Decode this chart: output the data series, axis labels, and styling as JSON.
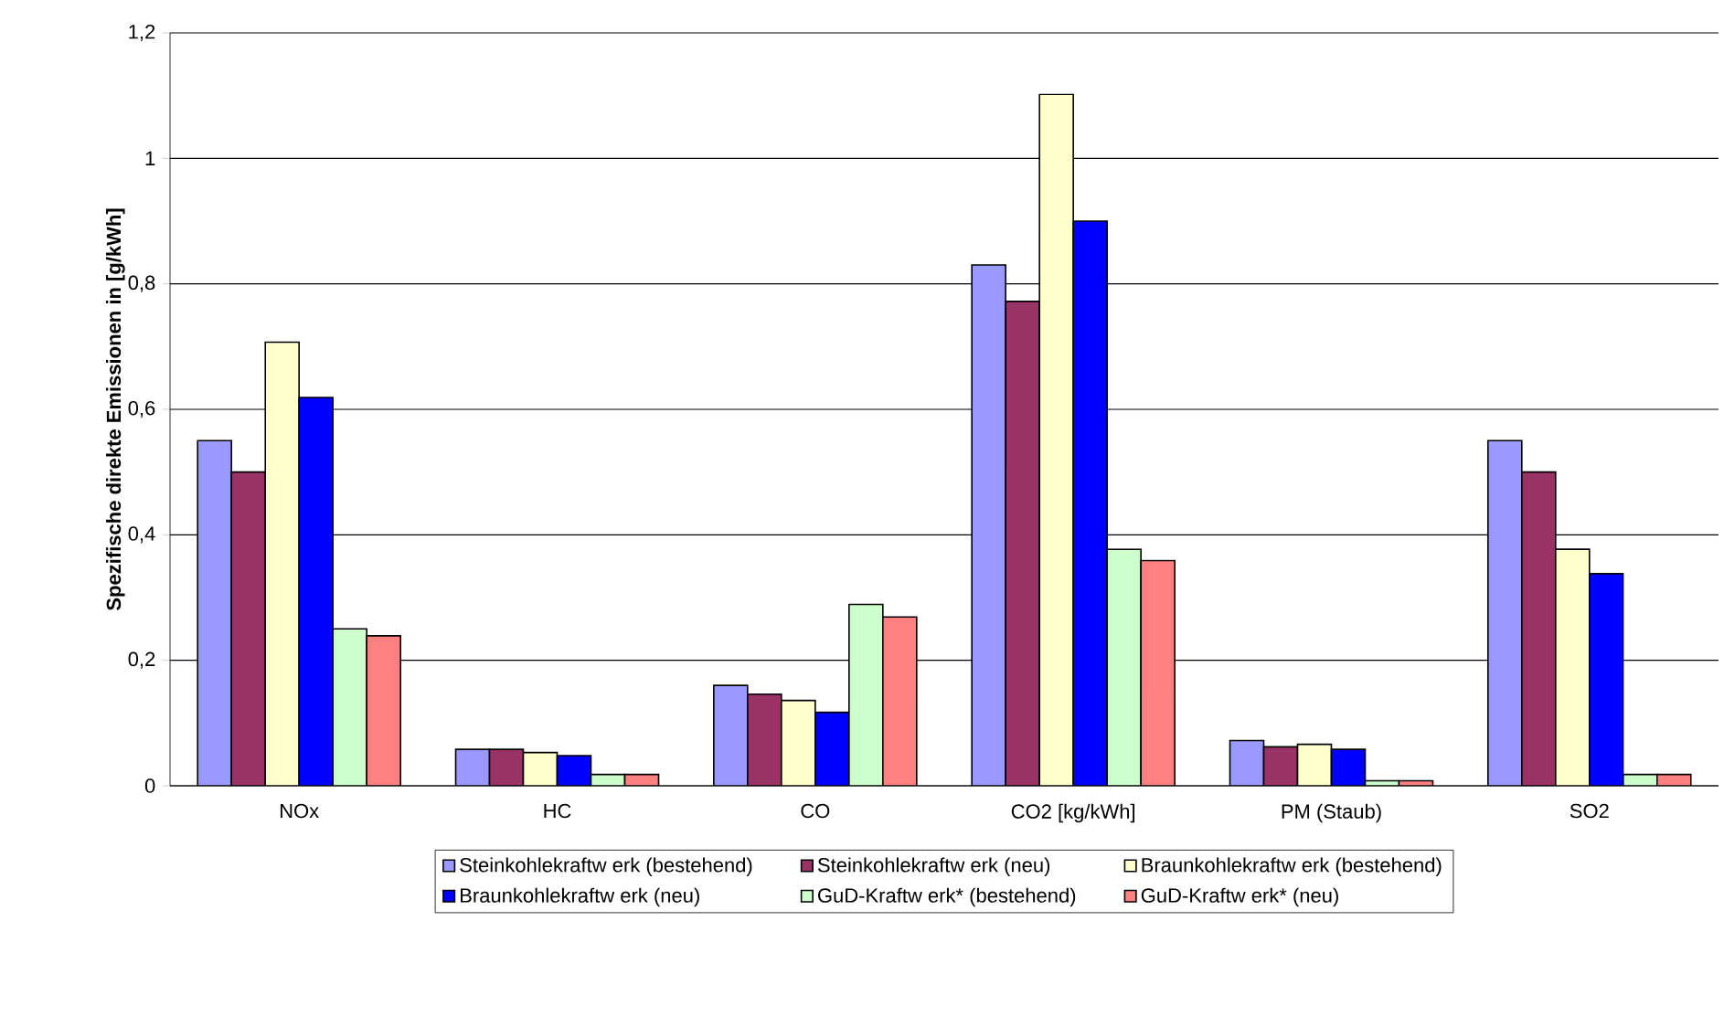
{
  "chart_data": {
    "type": "bar",
    "ylabel": "Spezifische direkte Emissionen in [g/kWh]",
    "categories": [
      "NOx",
      "HC",
      "CO",
      "CO2 [kg/kWh]",
      "PM (Staub)",
      "SO2"
    ],
    "series": [
      {
        "name": "Steinkohlekraftw erk (bestehend)",
        "color": "#9999ff",
        "values": [
          0.55,
          0.058,
          0.16,
          0.83,
          0.072,
          0.55
        ]
      },
      {
        "name": "Steinkohlekraftw erk (neu)",
        "color": "#993366",
        "values": [
          0.5,
          0.058,
          0.146,
          0.772,
          0.062,
          0.5
        ]
      },
      {
        "name": "Braunkohlekraftw erk (bestehend)",
        "color": "#ffffcc",
        "values": [
          0.707,
          0.053,
          0.136,
          1.102,
          0.066,
          0.377
        ]
      },
      {
        "name": "Braunkohlekraftw erk (neu)",
        "color": "#0000ff",
        "values": [
          0.619,
          0.048,
          0.117,
          0.9,
          0.058,
          0.338
        ]
      },
      {
        "name": "GuD-Kraftw erk* (bestehend)",
        "color": "#ccffcc",
        "values": [
          0.25,
          0.018,
          0.289,
          0.377,
          0.008,
          0.018
        ]
      },
      {
        "name": "GuD-Kraftw erk* (neu)",
        "color": "#ff8080",
        "values": [
          0.239,
          0.018,
          0.269,
          0.359,
          0.008,
          0.018
        ]
      }
    ],
    "ylim": [
      0,
      1.2
    ],
    "yticks": [
      0,
      {
        "value": 0.2,
        "label": "0,2"
      },
      {
        "value": 0.4,
        "label": "0,4"
      },
      {
        "value": 0.6,
        "label": "0,6"
      },
      {
        "value": 0.8,
        "label": "0,8"
      },
      1,
      {
        "value": 1.2,
        "label": "1,2"
      }
    ],
    "grid": "y",
    "legend": "bottom"
  }
}
